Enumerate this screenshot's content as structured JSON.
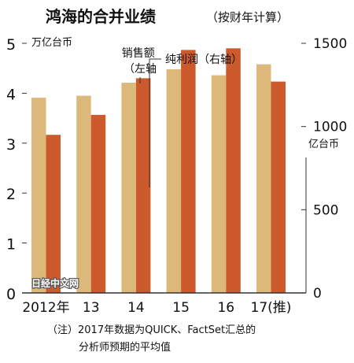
{
  "chart_data": {
    "type": "bar",
    "title": "鸿海的合并业绩",
    "subtitle": "（按财年计算）",
    "categories": [
      "2012年",
      "13",
      "14",
      "15",
      "16",
      "17(推)"
    ],
    "series": [
      {
        "name": "销售额\n（左轴",
        "axis": "left",
        "color": "#dcb97a",
        "values": [
          3.91,
          3.95,
          4.21,
          4.48,
          4.36,
          4.58
        ]
      },
      {
        "name": "纯利润（右轴）",
        "axis": "right",
        "color": "#cc5a2c",
        "values": [
          950,
          1070,
          1290,
          1460,
          1470,
          1270
        ]
      }
    ],
    "y_left": {
      "unit": "万亿台币",
      "min": 0,
      "max": 5,
      "ticks": [
        "0",
        "1",
        "2",
        "3",
        "4",
        "5"
      ]
    },
    "y_right": {
      "unit": "亿台币",
      "min": 0,
      "max": 1500,
      "ticks": [
        "0",
        "500",
        "1000",
        "1500"
      ]
    },
    "note": [
      "（注）2017年数据为QUICK、FactSet汇总的",
      "分析师预期的平均值"
    ],
    "watermark": "日经中文网"
  }
}
